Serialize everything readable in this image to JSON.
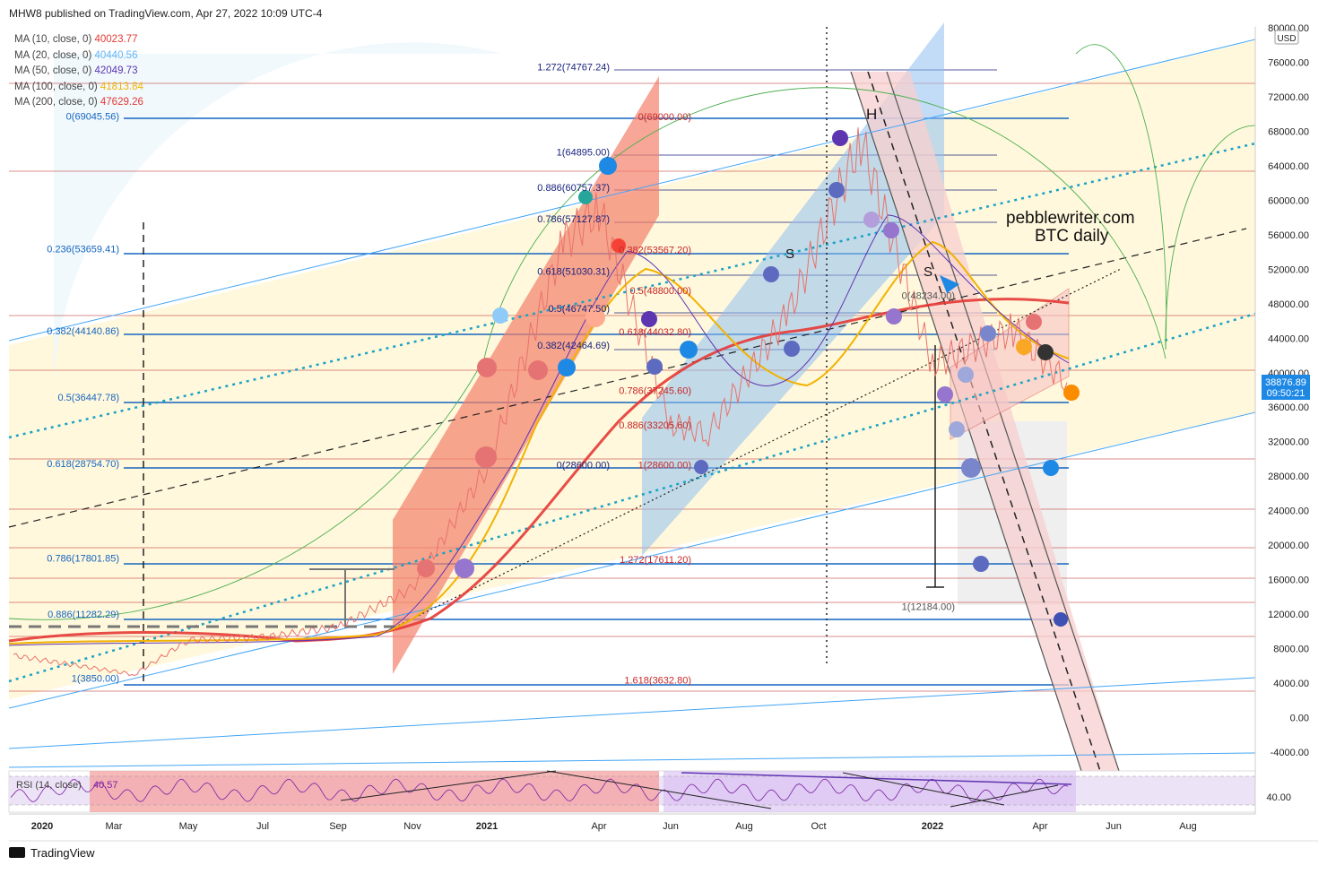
{
  "header": {
    "published": "MHW8 published on TradingView.com, Apr 27, 2022 10:09 UTC-4"
  },
  "legend": [
    {
      "label": "MA (10, close, 0)",
      "value": "40023.77",
      "color": "#e53935"
    },
    {
      "label": "MA (20, close, 0)",
      "value": "40440.56",
      "color": "#64b5f6"
    },
    {
      "label": "MA (50, close, 0)",
      "value": "42049.73",
      "color": "#5e35b1"
    },
    {
      "label": "MA (100, close, 0)",
      "value": "41813.84",
      "color": "#f2b200"
    },
    {
      "label": "MA (200, close, 0)",
      "value": "47629.26",
      "color": "#e53935"
    }
  ],
  "annotations": {
    "brand": "pebblewriter.com",
    "subtitle": "BTC daily",
    "head": "H",
    "shoulder_left": "S",
    "shoulder_right": "S"
  },
  "price_tag": {
    "price": "38876.89",
    "countdown": "09:50:21"
  },
  "rsi": {
    "label": "RSI (14, close)",
    "value": "40.57",
    "tick": "40.00"
  },
  "footer": {
    "brand": "TradingView"
  },
  "chart_data": {
    "type": "line",
    "symbol": "BTC daily",
    "currency": "USD",
    "y_axis": {
      "range": [
        -6000,
        80000
      ],
      "ticks": [
        "80000.00",
        "76000.00",
        "72000.00",
        "68000.00",
        "64000.00",
        "60000.00",
        "56000.00",
        "52000.00",
        "48000.00",
        "44000.00",
        "40000.00",
        "36000.00",
        "32000.00",
        "28000.00",
        "24000.00",
        "20000.00",
        "16000.00",
        "12000.00",
        "8000.00",
        "4000.00",
        "0.00",
        "-4000.00"
      ]
    },
    "x_axis": {
      "ticks": [
        "2020",
        "Mar",
        "May",
        "Jul",
        "Sep",
        "Nov",
        "2021",
        "Apr",
        "Jun",
        "Aug",
        "Oct",
        "2022",
        "Apr",
        "Jun",
        "Aug"
      ]
    },
    "fib_labels_left": [
      {
        "label": "0(69045.56)",
        "price": 69045.56
      },
      {
        "label": "0.236(53659.41)",
        "price": 53659.41
      },
      {
        "label": "0.382(44140.86)",
        "price": 44140.86
      },
      {
        "label": "0.5(36447.78)",
        "price": 36447.78
      },
      {
        "label": "0.618(28754.70)",
        "price": 28754.7
      },
      {
        "label": "0.786(17801.85)",
        "price": 17801.85
      },
      {
        "label": "0.886(11282.29)",
        "price": 11282.29
      },
      {
        "label": "1(3850.00)",
        "price": 3850
      }
    ],
    "fib_labels_mid_blue": [
      {
        "label": "1.272(74767.24)",
        "price": 74767.24
      },
      {
        "label": "1(64895.00)",
        "price": 64895
      },
      {
        "label": "0.886(60757.37)",
        "price": 60757.37
      },
      {
        "label": "0.786(57127.87)",
        "price": 57127.87
      },
      {
        "label": "0.618(51030.31)",
        "price": 51030.31
      },
      {
        "label": "0.5(46747.50)",
        "price": 46747.5
      },
      {
        "label": "0.382(42464.69)",
        "price": 42464.69
      },
      {
        "label": "0(28600.00)",
        "price": 28600
      }
    ],
    "fib_labels_mid_red": [
      {
        "label": "0(69000.00)",
        "price": 69000
      },
      {
        "label": "0.382(53567.20)",
        "price": 53567.2
      },
      {
        "label": "0.5(48800.00)",
        "price": 48800
      },
      {
        "label": "0.618(44032.80)",
        "price": 44032.8
      },
      {
        "label": "0.786(37245.60)",
        "price": 37245.6
      },
      {
        "label": "0.886(33205.60)",
        "price": 33205.6
      },
      {
        "label": "1(28600.00)",
        "price": 28600
      },
      {
        "label": "1.272(17611.20)",
        "price": 17611.2
      },
      {
        "label": "1.618(3632.80)",
        "price": 3632.8
      }
    ],
    "fib_labels_right_gray": [
      {
        "label": "0(48234.00)",
        "price": 48234
      },
      {
        "label": "1(12184.00)",
        "price": 12184
      }
    ],
    "price_series": {
      "name": "BTC",
      "dates": [
        "2020-01",
        "2020-03",
        "2020-05",
        "2020-07",
        "2020-09",
        "2020-11",
        "2021-01",
        "2021-03",
        "2021-04",
        "2021-06",
        "2021-07",
        "2021-09",
        "2021-11",
        "2022-01",
        "2022-03",
        "2022-04"
      ],
      "values": [
        7200,
        5000,
        9000,
        9300,
        10500,
        15000,
        29000,
        55000,
        59000,
        34000,
        33000,
        47000,
        67000,
        41000,
        45000,
        38876.89
      ]
    },
    "current_price": 38876.89
  }
}
